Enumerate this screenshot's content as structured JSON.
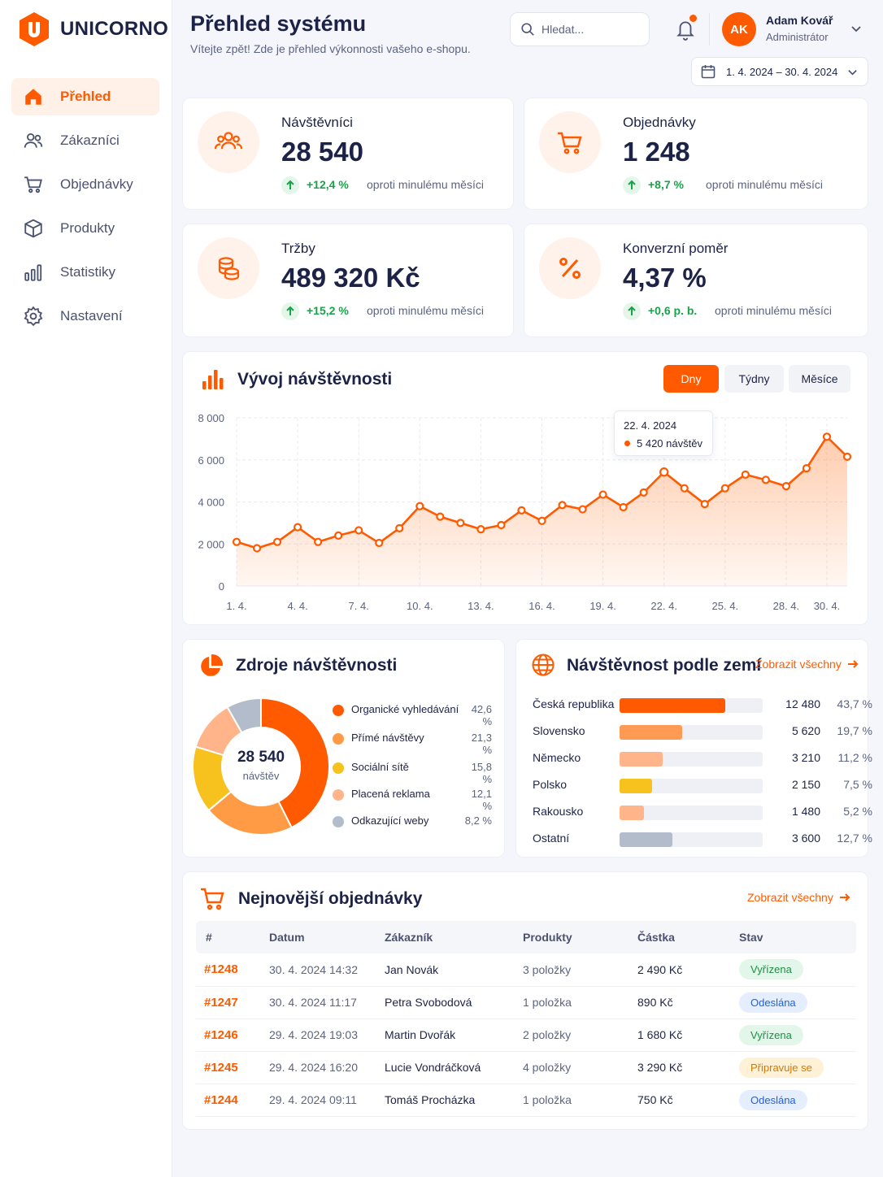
{
  "brand": {
    "name": "UNICORNO",
    "logo_letter": "U",
    "accent": "#ff5a00"
  },
  "nav": [
    {
      "label": "Přehled",
      "icon": "home-icon",
      "active": true
    },
    {
      "label": "Zákazníci",
      "icon": "users-icon"
    },
    {
      "label": "Objednávky",
      "icon": "cart-icon"
    },
    {
      "label": "Produkty",
      "icon": "box-icon"
    },
    {
      "label": "Statistiky",
      "icon": "stats-icon"
    },
    {
      "label": "Nastavení",
      "icon": "gear-icon"
    }
  ],
  "header": {
    "title": "Přehled systému",
    "subtitle": "Vítejte zpět! Zde je přehled výkonnosti vašeho e-shopu.",
    "search_placeholder": "Hledat...",
    "user": {
      "initials": "AK",
      "name": "Adam Kovář",
      "role": "Administrátor"
    },
    "date_range": "1. 4. 2024 – 30. 4. 2024"
  },
  "kpis": [
    {
      "label": "Návštěvníci",
      "value": "28 540",
      "change": "+12,4 %",
      "compare": "oproti minulému měsíci",
      "icon": "users-icon"
    },
    {
      "label": "Objednávky",
      "value": "1 248",
      "change": "+8,7 %",
      "compare": "oproti minulému měsíci",
      "icon": "cart-icon"
    },
    {
      "label": "Tržby",
      "value": "489 320 Kč",
      "change": "+15,2 %",
      "compare": "oproti minulému měsíci",
      "icon": "coins-icon"
    },
    {
      "label": "Konverzní poměr",
      "value": "4,37 %",
      "change": "+0,6 p. b.",
      "compare": "oproti minulému měsíci",
      "icon": "percent-icon"
    }
  ],
  "traffic": {
    "title": "Vývoj návštěvnosti",
    "segments": [
      {
        "label": "Dny",
        "active": true
      },
      {
        "label": "Týdny"
      },
      {
        "label": "Měsíce"
      }
    ],
    "tooltip": {
      "date": "22. 4. 2024",
      "value": "5 420 návštěv"
    }
  },
  "sources": {
    "title": "Zdroje návštěvnosti",
    "total": "28 540",
    "total_label": "návštěv",
    "items": [
      {
        "name": "Organické vyhledávání",
        "pct_label": "42,6 %",
        "value": 42.6,
        "color": "#ff5a00"
      },
      {
        "name": "Přímé návštěvy",
        "pct_label": "21,3 %",
        "value": 21.3,
        "color": "#ff9a45"
      },
      {
        "name": "Sociální sítě",
        "pct_label": "15,8 %",
        "value": 15.8,
        "color": "#f7c11e"
      },
      {
        "name": "Placená reklama",
        "pct_label": "12,1 %",
        "value": 12.1,
        "color": "#ffb48a"
      },
      {
        "name": "Odkazující weby",
        "pct_label": "8,2 %",
        "value": 8.2,
        "color": "#b3bccb"
      }
    ]
  },
  "countries": {
    "title": "Návštěvnost podle zemí",
    "link": "Zobrazit všechny",
    "items": [
      {
        "name": "Česká republika",
        "count": "12 480",
        "pct_label": "43,7 %",
        "share": 0.74,
        "color": "#ff5a00"
      },
      {
        "name": "Slovensko",
        "count": "5 620",
        "pct_label": "19,7 %",
        "share": 0.44,
        "color": "#ff9a55"
      },
      {
        "name": "Německo",
        "count": "3 210",
        "pct_label": "11,2 %",
        "share": 0.3,
        "color": "#ffb48a"
      },
      {
        "name": "Polsko",
        "count": "2 150",
        "pct_label": "7,5 %",
        "share": 0.23,
        "color": "#f7c11e"
      },
      {
        "name": "Rakousko",
        "count": "1 480",
        "pct_label": "5,2 %",
        "share": 0.17,
        "color": "#ffb48a"
      },
      {
        "name": "Ostatní",
        "count": "3 600",
        "pct_label": "12,7 %",
        "share": 0.37,
        "color": "#b3bccb"
      }
    ]
  },
  "orders": {
    "title": "Nejnovější objednávky",
    "link": "Zobrazit všechny",
    "columns": [
      "#",
      "Datum",
      "Zákazník",
      "Produkty",
      "Částka",
      "Stav"
    ],
    "rows": [
      {
        "id": "#1248",
        "date": "30. 4. 2024 14:32",
        "customer": "Jan Novák",
        "products": "3 položky",
        "amount": "2 490 Kč",
        "status": "Vyřízena",
        "status_tone": "green"
      },
      {
        "id": "#1247",
        "date": "30. 4. 2024 11:17",
        "customer": "Petra Svobodová",
        "products": "1 položka",
        "amount": "890 Kč",
        "status": "Odeslána",
        "status_tone": "blue"
      },
      {
        "id": "#1246",
        "date": "29. 4. 2024 19:03",
        "customer": "Martin Dvořák",
        "products": "2 položky",
        "amount": "1 680 Kč",
        "status": "Vyřízena",
        "status_tone": "green"
      },
      {
        "id": "#1245",
        "date": "29. 4. 2024 16:20",
        "customer": "Lucie Vondráčková",
        "products": "4 položky",
        "amount": "3 290 Kč",
        "status": "Připravuje se",
        "status_tone": "yellow"
      },
      {
        "id": "#1244",
        "date": "29. 4. 2024 09:11",
        "customer": "Tomáš Procházka",
        "products": "1 položka",
        "amount": "750 Kč",
        "status": "Odeslána",
        "status_tone": "blue"
      }
    ]
  },
  "chart_data": {
    "type": "area",
    "title": "Vývoj návštěvnosti",
    "x": [
      "1. 4.",
      "2. 4.",
      "3. 4.",
      "4. 4.",
      "5. 4.",
      "6. 4.",
      "7. 4.",
      "8. 4.",
      "9. 4.",
      "10. 4.",
      "11. 4.",
      "12. 4.",
      "13. 4.",
      "14. 4.",
      "15. 4.",
      "16. 4.",
      "17. 4.",
      "18. 4.",
      "19. 4.",
      "20. 4.",
      "21. 4.",
      "22. 4.",
      "23. 4.",
      "24. 4.",
      "25. 4.",
      "26. 4.",
      "27. 4.",
      "28. 4.",
      "29. 4.",
      "30. 4.",
      "1. 5."
    ],
    "x_ticks": [
      "1. 4.",
      "4. 4.",
      "7. 4.",
      "10. 4.",
      "13. 4.",
      "16. 4.",
      "19. 4.",
      "22. 4.",
      "25. 4.",
      "28. 4.",
      "30. 4."
    ],
    "series": [
      {
        "values": [
          2100,
          1800,
          2100,
          2800,
          2100,
          2400,
          2650,
          2050,
          2750,
          3800,
          3300,
          3000,
          2700,
          2900,
          3600,
          3100,
          3850,
          3650,
          4350,
          3750,
          4450,
          5420,
          4650,
          3900,
          4650,
          5300,
          5050,
          4750,
          5600,
          7100,
          6150
        ]
      }
    ],
    "ylim": [
      0,
      8000
    ],
    "yticks": [
      0,
      2000,
      4000,
      6000,
      8000
    ],
    "ytick_labels": [
      "0",
      "2 000",
      "4 000",
      "6 000",
      "8 000"
    ],
    "grid": true,
    "highlight_index": 21
  }
}
